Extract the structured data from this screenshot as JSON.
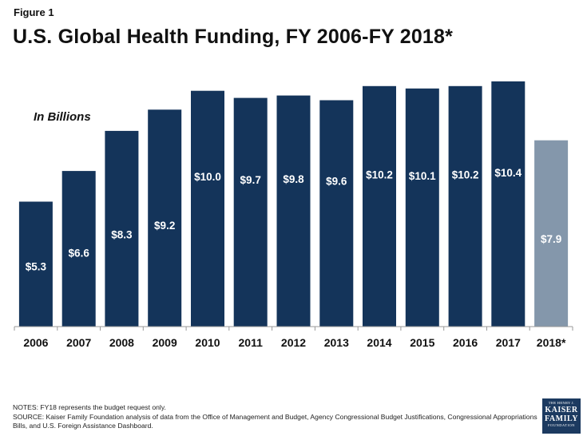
{
  "figure_label": "Figure 1",
  "title": "U.S. Global Health Funding, FY 2006-FY 2018*",
  "chart_data": {
    "type": "bar",
    "unit_label": "In Billions",
    "categories": [
      "2006",
      "2007",
      "2008",
      "2009",
      "2010",
      "2011",
      "2012",
      "2013",
      "2014",
      "2015",
      "2016",
      "2017",
      "2018*"
    ],
    "values": [
      5.3,
      6.6,
      8.3,
      9.2,
      10.0,
      9.7,
      9.8,
      9.6,
      10.2,
      10.1,
      10.2,
      10.4,
      7.9
    ],
    "data_labels": [
      "$5.3",
      "$6.6",
      "$8.3",
      "$9.2",
      "$10.0",
      "$9.7",
      "$9.8",
      "$9.6",
      "$10.2",
      "$10.1",
      "$10.2",
      "$10.4",
      "$7.9"
    ],
    "colors": [
      "#14345a",
      "#14345a",
      "#14345a",
      "#14345a",
      "#14345a",
      "#14345a",
      "#14345a",
      "#14345a",
      "#14345a",
      "#14345a",
      "#14345a",
      "#14345a",
      "#8497ab"
    ],
    "ylim": [
      0,
      10.6
    ],
    "grid": false
  },
  "notes": {
    "line1": "NOTES:  FY18 represents the budget request only.",
    "line2": "SOURCE:  Kaiser Family Foundation analysis of data from the Office of Management and Budget,  Agency Congressional Budget Justifications, Congressional Appropriations Bills, and U.S. Foreign Assistance Dashboard."
  },
  "logo": {
    "line1": "THE HENRY J.",
    "line2": "KAISER",
    "line3": "FAMILY",
    "line4": "FOUNDATION"
  }
}
